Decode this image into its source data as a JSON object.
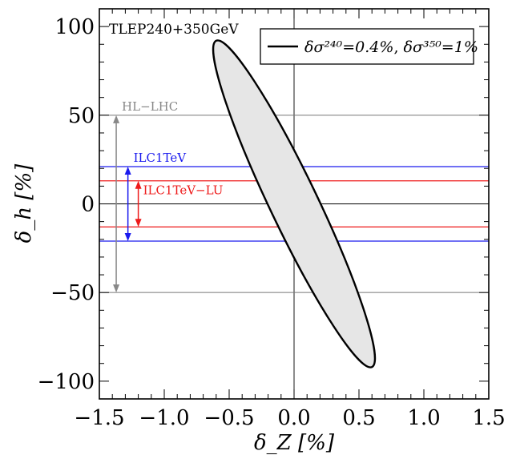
{
  "chart_data": {
    "type": "line",
    "title": "",
    "xlabel": "δ_Z [%]",
    "ylabel": "δ_h [%]",
    "xlim": [
      -1.5,
      1.5
    ],
    "ylim": [
      -110,
      110
    ],
    "x_ticks": [
      "−1.5",
      "−1.0",
      "−0.5",
      "0.0",
      "0.5",
      "1.0",
      "1.5"
    ],
    "x_tick_values": [
      -1.5,
      -1.0,
      -0.5,
      0.0,
      0.5,
      1.0,
      1.5
    ],
    "y_ticks": [
      "100",
      "50",
      "0",
      "−50",
      "−100"
    ],
    "y_tick_values": [
      100,
      50,
      0,
      -50,
      -100
    ],
    "corner_label": "TLEP240+350GeV",
    "legend": {
      "placement": "top-right",
      "sigma_240": "δσ²⁴⁰=0.4%",
      "sigma_350": "δσ³⁵⁰=1%",
      "separator": ", "
    },
    "ellipse": {
      "center": [
        0.0,
        0.0
      ],
      "endpoints": [
        [
          -0.6,
          92
        ],
        [
          0.6,
          -92
        ]
      ],
      "fill": "#e6e6e6",
      "stroke": "#000000"
    },
    "bands": [
      {
        "label": "HL−LHC",
        "half_width": 50,
        "arrow_x": -1.37,
        "color": "#888888"
      },
      {
        "label": "ILC1TeV",
        "half_width": 21,
        "arrow_x": -1.28,
        "color": "#1a1aee"
      },
      {
        "label": "ILC1TeV−LU",
        "half_width": 13,
        "arrow_x": -1.2,
        "color": "#ee1a1a"
      }
    ]
  }
}
